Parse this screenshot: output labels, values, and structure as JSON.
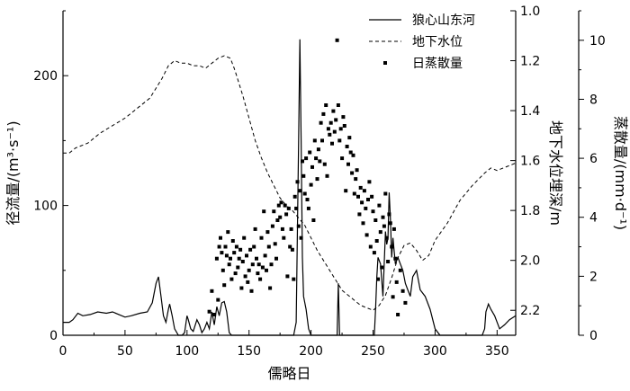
{
  "chart_data": {
    "type": "line",
    "xlabel": "儒略日",
    "ylabel_left": "径流量/(m³·s⁻¹)",
    "ylabel_right1": "地下水位埋深/m",
    "ylabel_right2": "蒸散量/(mm·d⁻¹)",
    "xlim": [
      0,
      365
    ],
    "ylim_left": [
      0,
      250
    ],
    "ylim_right1": [
      2.3,
      1.0
    ],
    "ylim_right2": [
      0,
      11
    ],
    "x_ticks": [
      0,
      50,
      100,
      150,
      200,
      250,
      300,
      350
    ],
    "y_left_ticks": [
      0,
      100,
      200
    ],
    "y_right1_ticks": [
      1.0,
      1.2,
      1.4,
      1.6,
      1.8,
      2.0,
      2.2
    ],
    "y_right1_tick_labels": [
      "1.0",
      "1.2",
      "1.4",
      "1.6",
      "1.8",
      "2.0",
      "2.2"
    ],
    "y_right2_ticks": [
      0,
      2,
      4,
      6,
      8,
      10
    ],
    "legend_position": "top-right",
    "legend": [
      {
        "label": "狼心山东河",
        "style": "solid"
      },
      {
        "label": "地下水位",
        "style": "dashed"
      },
      {
        "label": "日蒸散量",
        "style": "marker"
      }
    ],
    "series": [
      {
        "name": "狼心山东河",
        "axis": "left",
        "style": "solid",
        "x": [
          0,
          5,
          8,
          12,
          16,
          22,
          28,
          35,
          40,
          45,
          50,
          55,
          62,
          68,
          72,
          75,
          77,
          79,
          81,
          83,
          85,
          86,
          88,
          90,
          93,
          96,
          98,
          100,
          101,
          103,
          105,
          108,
          110,
          112,
          114,
          116,
          118,
          120,
          122,
          124,
          126,
          128,
          130,
          132,
          134,
          136,
          138,
          140,
          150,
          160,
          170,
          180,
          186,
          188,
          190,
          191,
          192,
          193,
          194,
          196,
          198,
          200,
          202,
          205,
          210,
          215,
          218,
          220,
          221,
          222,
          223,
          224,
          226,
          230,
          240,
          248,
          250,
          251,
          252,
          253,
          254,
          256,
          258,
          259,
          260,
          261,
          262,
          263,
          264,
          265,
          266,
          268,
          270,
          272,
          274,
          276,
          278,
          280,
          282,
          285,
          288,
          292,
          296,
          300,
          304,
          308,
          312,
          320,
          325,
          330,
          335,
          338,
          340,
          341,
          343,
          345,
          348,
          352,
          356,
          360,
          365
        ],
        "y": [
          10,
          10,
          12,
          17,
          15,
          16,
          18,
          17,
          18,
          16,
          14,
          15,
          17,
          18,
          25,
          40,
          45,
          30,
          15,
          10,
          20,
          24,
          15,
          5,
          0,
          0,
          2,
          15,
          12,
          5,
          3,
          12,
          8,
          2,
          5,
          10,
          5,
          18,
          8,
          22,
          15,
          25,
          26,
          18,
          2,
          0,
          0,
          0,
          0,
          0,
          0,
          0,
          0,
          10,
          150,
          228,
          150,
          60,
          30,
          20,
          5,
          0,
          0,
          0,
          0,
          0,
          0,
          0,
          0,
          40,
          0,
          0,
          0,
          0,
          0,
          0,
          0,
          0,
          20,
          45,
          60,
          55,
          30,
          55,
          80,
          70,
          75,
          110,
          90,
          60,
          75,
          55,
          60,
          55,
          50,
          40,
          35,
          30,
          45,
          50,
          35,
          30,
          20,
          5,
          0,
          0,
          0,
          0,
          0,
          0,
          0,
          0,
          5,
          18,
          24,
          20,
          15,
          5,
          8,
          12,
          15
        ]
      },
      {
        "name": "地下水位",
        "axis": "right1",
        "style": "dashed",
        "x": [
          0,
          5,
          10,
          20,
          30,
          40,
          50,
          60,
          70,
          75,
          80,
          85,
          90,
          95,
          100,
          105,
          110,
          115,
          120,
          125,
          130,
          135,
          138,
          140,
          145,
          150,
          155,
          160,
          165,
          170,
          175,
          180,
          185,
          190,
          195,
          200,
          205,
          210,
          215,
          220,
          225,
          230,
          235,
          240,
          245,
          250,
          255,
          260,
          265,
          270,
          275,
          280,
          285,
          290,
          295,
          300,
          310,
          320,
          330,
          340,
          345,
          350,
          355,
          360,
          365
        ],
        "y": [
          1.57,
          1.57,
          1.55,
          1.53,
          1.49,
          1.46,
          1.43,
          1.39,
          1.35,
          1.31,
          1.27,
          1.22,
          1.2,
          1.21,
          1.21,
          1.22,
          1.22,
          1.23,
          1.21,
          1.19,
          1.18,
          1.19,
          1.23,
          1.26,
          1.34,
          1.43,
          1.52,
          1.59,
          1.65,
          1.7,
          1.75,
          1.78,
          1.8,
          1.83,
          1.86,
          1.91,
          1.96,
          2.0,
          2.04,
          2.08,
          2.12,
          2.14,
          2.16,
          2.18,
          2.19,
          2.2,
          2.18,
          2.14,
          2.07,
          1.99,
          1.94,
          1.93,
          1.96,
          2.0,
          1.98,
          1.92,
          1.85,
          1.76,
          1.7,
          1.65,
          1.63,
          1.64,
          1.63,
          1.62,
          1.61
        ]
      },
      {
        "name": "日蒸散量",
        "axis": "right2",
        "style": "marker",
        "x": [
          118,
          120,
          122,
          124,
          125,
          126,
          127,
          128,
          129,
          130,
          131,
          132,
          133,
          134,
          135,
          136,
          137,
          138,
          139,
          140,
          141,
          142,
          143,
          144,
          145,
          146,
          147,
          148,
          149,
          150,
          151,
          152,
          153,
          154,
          155,
          156,
          157,
          158,
          159,
          160,
          161,
          162,
          163,
          164,
          165,
          166,
          167,
          168,
          169,
          170,
          171,
          172,
          173,
          174,
          175,
          176,
          177,
          178,
          179,
          180,
          181,
          182,
          183,
          184,
          185,
          186,
          187,
          188,
          189,
          190,
          191,
          192,
          193,
          194,
          195,
          196,
          197,
          198,
          199,
          200,
          201,
          202,
          203,
          204,
          205,
          206,
          207,
          208,
          209,
          210,
          211,
          212,
          213,
          214,
          215,
          216,
          217,
          218,
          219,
          220,
          221,
          222,
          223,
          224,
          225,
          226,
          227,
          228,
          229,
          230,
          231,
          232,
          233,
          234,
          235,
          236,
          237,
          238,
          239,
          240,
          241,
          242,
          243,
          244,
          245,
          246,
          247,
          248,
          249,
          250,
          251,
          252,
          253,
          254,
          255,
          256,
          257,
          258,
          259,
          260,
          261,
          262,
          263,
          264,
          265,
          266,
          267,
          268,
          269,
          270,
          272,
          274,
          276
        ],
        "y": [
          0.8,
          1.5,
          0.7,
          2.6,
          1.2,
          3.0,
          3.3,
          2.8,
          2.2,
          1.7,
          3.0,
          2.7,
          3.5,
          2.4,
          2.6,
          1.9,
          3.2,
          2.8,
          2.1,
          3.0,
          2.3,
          2.6,
          2.9,
          1.6,
          2.5,
          3.3,
          2.0,
          2.7,
          1.8,
          2.2,
          2.9,
          1.5,
          2.4,
          3.0,
          3.6,
          2.6,
          2.1,
          2.4,
          1.9,
          3.3,
          2.3,
          4.2,
          2.7,
          2.2,
          3.5,
          3.0,
          1.6,
          2.4,
          3.7,
          4.2,
          3.1,
          2.6,
          3.9,
          4.4,
          4.0,
          4.5,
          3.6,
          3.3,
          4.4,
          4.1,
          2.0,
          4.3,
          3.0,
          3.6,
          2.9,
          1.9,
          4.7,
          4.3,
          5.2,
          3.7,
          4.9,
          3.3,
          5.9,
          5.4,
          4.8,
          6.0,
          4.6,
          4.3,
          6.2,
          5.1,
          5.7,
          3.9,
          6.6,
          6.0,
          5.3,
          6.3,
          5.9,
          7.2,
          6.6,
          7.5,
          5.8,
          7.8,
          5.4,
          7.0,
          6.8,
          7.2,
          6.5,
          7.6,
          6.9,
          7.3,
          10.0,
          7.8,
          6.6,
          7.0,
          6.0,
          7.4,
          7.1,
          4.9,
          6.4,
          5.8,
          6.7,
          6.2,
          5.5,
          6.1,
          4.8,
          5.3,
          5.6,
          4.7,
          4.1,
          5.0,
          4.5,
          3.8,
          4.9,
          4.3,
          3.4,
          4.6,
          5.2,
          3.0,
          4.7,
          4.2,
          2.8,
          3.9,
          3.2,
          1.9,
          4.4,
          3.5,
          2.3,
          4.0,
          3.7,
          4.8,
          3.3,
          2.5,
          4.1,
          3.8,
          3.0,
          1.3,
          3.6,
          2.6,
          1.8,
          0.7,
          2.2,
          1.5,
          1.1
        ]
      }
    ]
  }
}
